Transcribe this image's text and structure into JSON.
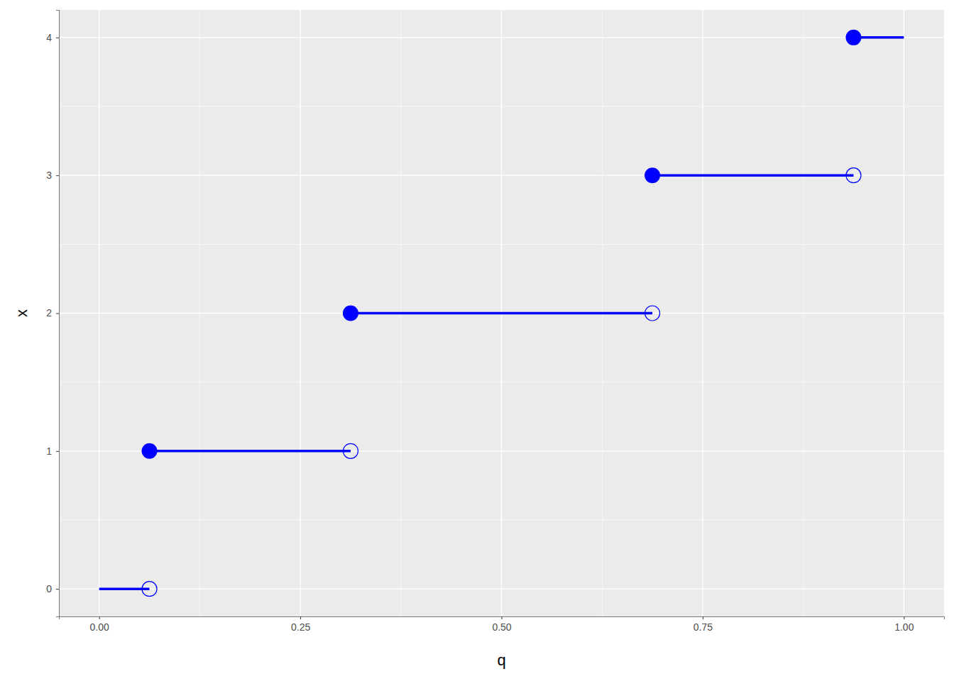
{
  "chart_data": {
    "type": "step",
    "x_label": "q",
    "y_label": "x",
    "x_start": [
      0,
      0.0625,
      0.3125,
      0.6875,
      0.9375
    ],
    "x_end": [
      0.0625,
      0.3125,
      0.6875,
      0.9375,
      1
    ],
    "values": [
      0,
      1,
      2,
      3,
      4
    ],
    "color": "#0000ff",
    "xlim": [
      -0.05,
      1.05
    ],
    "ylim": [
      -0.2,
      4.2
    ],
    "xticks": [
      {
        "value": 0,
        "label": "0.00"
      },
      {
        "value": 0.25,
        "label": "0.25"
      },
      {
        "value": 0.5,
        "label": "0.50"
      },
      {
        "value": 0.75,
        "label": "0.75"
      },
      {
        "value": 1,
        "label": "1.00"
      }
    ],
    "yticks": [
      0,
      1,
      2,
      3,
      4
    ],
    "grid": true
  }
}
